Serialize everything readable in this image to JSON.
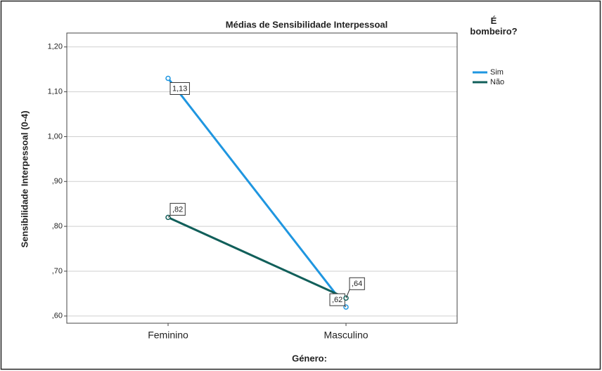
{
  "chart_data": {
    "type": "line",
    "title": "Médias de Sensibilidade Interpessoal",
    "x_label": "Género:",
    "y_label": "Sensibilidade Interpessoal (0-4)",
    "legend_title": "É bombeiro?",
    "categories": [
      "Feminino",
      "Masculino"
    ],
    "series": [
      {
        "name": "Sim",
        "color": "#1f96e0",
        "values": [
          1.13,
          0.62
        ],
        "value_labels": [
          "1,13",
          ",62"
        ]
      },
      {
        "name": "Não",
        "color": "#115f5a",
        "values": [
          0.82,
          0.64
        ],
        "value_labels": [
          ",82",
          ",64"
        ]
      }
    ],
    "ylim": [
      0.584,
      1.231
    ],
    "yticks": [
      {
        "value": 0.6,
        "label": ",60"
      },
      {
        "value": 0.7,
        "label": ",70"
      },
      {
        "value": 0.8,
        "label": ",80"
      },
      {
        "value": 0.9,
        "label": ",90"
      },
      {
        "value": 1.0,
        "label": "1,00"
      },
      {
        "value": 1.1,
        "label": "1,10"
      },
      {
        "value": 1.2,
        "label": "1,20"
      }
    ],
    "grid": true,
    "legend": "right"
  }
}
